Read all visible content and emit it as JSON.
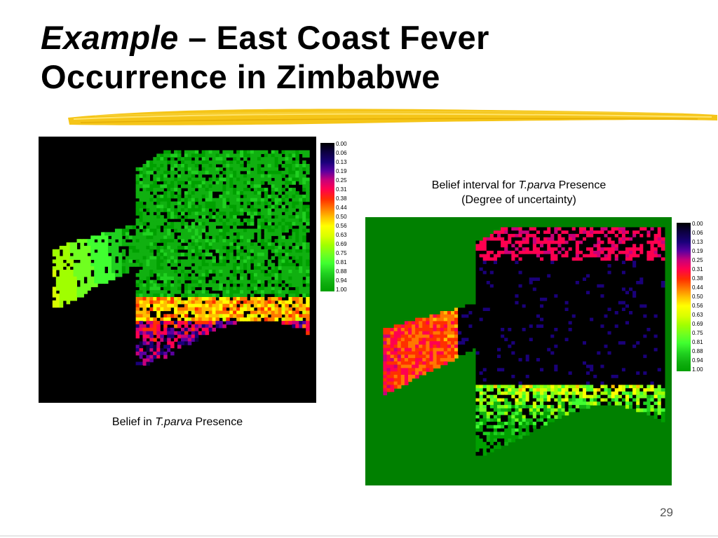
{
  "slide": {
    "title_italic": "Example",
    "title_rest_line1": " – East Coast Fever",
    "title_line2": "Occurrence in Zimbabwe",
    "page_number": "29"
  },
  "maps": [
    {
      "caption_pre": "Belief in ",
      "caption_italic": "T.parva",
      "caption_post": " Presence",
      "caption_line2": "",
      "background": "#000000"
    },
    {
      "caption_pre": "Belief interval for ",
      "caption_italic": "T.parva",
      "caption_post": " Presence",
      "caption_line2": "(Degree of uncertainty)",
      "background": "#008000"
    }
  ],
  "legend": {
    "labels": [
      "0.00",
      "0.06",
      "0.13",
      "0.19",
      "0.25",
      "0.31",
      "0.38",
      "0.44",
      "0.50",
      "0.56",
      "0.63",
      "0.69",
      "0.75",
      "0.81",
      "0.88",
      "0.94",
      "1.00"
    ],
    "colors": [
      "#000000",
      "#0c0040",
      "#1a007a",
      "#5a00a0",
      "#c8007a",
      "#ff0050",
      "#ff3000",
      "#ff7800",
      "#ffc000",
      "#ffff00",
      "#d8ff00",
      "#a0ff00",
      "#70ff20",
      "#40ff30",
      "#20d020",
      "#10b010",
      "#00a000"
    ]
  }
}
